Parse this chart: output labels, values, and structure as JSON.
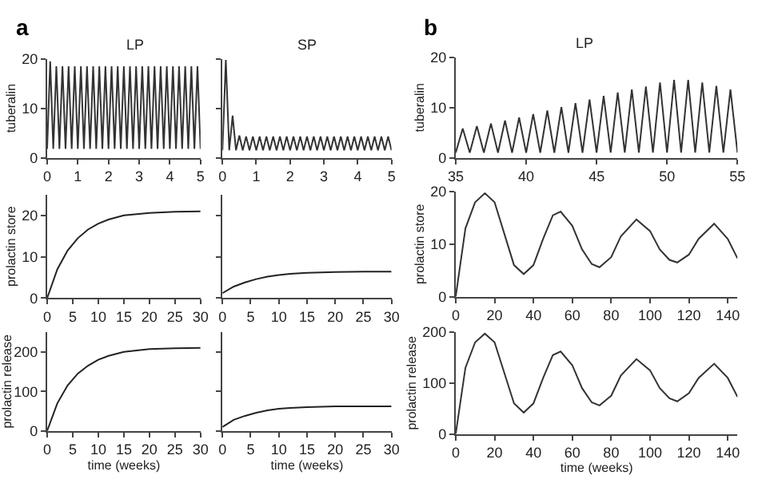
{
  "chart_data": [
    {
      "type": "line",
      "title": "LP",
      "ylabel": "tuberalin",
      "annotations": [
        "a"
      ],
      "x": [
        0,
        0.1,
        0.2,
        0.3,
        0.4,
        0.5,
        0.6,
        0.7,
        0.8,
        0.9,
        1.0,
        1.1,
        1.2,
        1.3,
        1.4,
        1.5,
        1.6,
        1.7,
        1.8,
        1.9,
        2.0,
        2.1,
        2.2,
        2.3,
        2.4,
        2.5,
        2.6,
        2.7,
        2.8,
        2.9,
        3.0,
        3.1,
        3.2,
        3.3,
        3.4,
        3.5,
        3.6,
        3.7,
        3.8,
        3.9,
        4.0,
        4.1,
        4.2,
        4.3,
        4.4,
        4.5,
        4.6,
        4.7,
        4.8,
        4.9,
        5.0
      ],
      "xlim": [
        0,
        5
      ],
      "xticks": [
        0,
        1,
        2,
        3,
        4,
        5
      ],
      "ylim": [
        0,
        20
      ],
      "yticks": [
        0,
        10,
        20
      ],
      "series": [
        {
          "color": "#333333",
          "values": [
            1.8,
            19.5,
            1.8,
            18.5,
            1.8,
            18.5,
            1.8,
            18.5,
            1.8,
            18.5,
            1.8,
            18.5,
            1.8,
            18.5,
            1.8,
            18.5,
            1.8,
            18.5,
            1.8,
            18.5,
            1.8,
            18.5,
            1.8,
            18.5,
            1.8,
            18.5,
            1.8,
            18.5,
            1.8,
            18.5,
            1.8,
            18.5,
            1.8,
            18.5,
            1.8,
            18.5,
            1.8,
            18.5,
            1.8,
            18.5,
            1.8,
            18.5,
            1.8,
            18.5,
            1.8,
            18.5,
            1.8,
            18.5,
            1.8,
            18.5,
            1.8
          ]
        }
      ]
    },
    {
      "type": "line",
      "title": "SP",
      "tick_labels": "x",
      "x": [
        0,
        0.1,
        0.2,
        0.3,
        0.4,
        0.5,
        0.6,
        0.7,
        0.8,
        0.9,
        1.0,
        1.1,
        1.2,
        1.3,
        1.4,
        1.5,
        1.6,
        1.7,
        1.8,
        1.9,
        2.0,
        2.1,
        2.2,
        2.3,
        2.4,
        2.5,
        2.6,
        2.7,
        2.8,
        2.9,
        3.0,
        3.1,
        3.2,
        3.3,
        3.4,
        3.5,
        3.6,
        3.7,
        3.8,
        3.9,
        4.0,
        4.1,
        4.2,
        4.3,
        4.4,
        4.5,
        4.6,
        4.7,
        4.8,
        4.9,
        5.0
      ],
      "xlim": [
        0,
        5
      ],
      "xticks": [
        0,
        1,
        2,
        3,
        4,
        5
      ],
      "ylim": [
        0,
        20
      ],
      "yticks": [
        0,
        10,
        20
      ],
      "series": [
        {
          "color": "#333333",
          "values": [
            1.5,
            19.8,
            1.5,
            8.5,
            1.5,
            4.5,
            1.5,
            4.3,
            1.5,
            4.3,
            1.5,
            4.3,
            1.5,
            4.3,
            1.5,
            4.3,
            1.5,
            4.3,
            1.5,
            4.3,
            1.5,
            4.3,
            1.5,
            4.3,
            1.5,
            4.3,
            1.5,
            4.3,
            1.5,
            4.3,
            1.5,
            4.3,
            1.5,
            4.3,
            1.5,
            4.3,
            1.5,
            4.3,
            1.5,
            4.3,
            1.5,
            4.3,
            1.5,
            4.3,
            1.5,
            4.3,
            1.5,
            4.3,
            1.5,
            4.3,
            1.5
          ]
        }
      ]
    },
    {
      "type": "line",
      "ylabel": "prolactin store",
      "x": [
        0,
        2,
        4,
        6,
        8,
        10,
        12,
        15,
        20,
        25,
        30
      ],
      "xlim": [
        0,
        30
      ],
      "xticks": [
        0,
        5,
        10,
        15,
        20,
        25,
        30
      ],
      "ylim": [
        0,
        25
      ],
      "yticks": [
        0,
        10,
        20
      ],
      "series": [
        {
          "color": "#222222",
          "values": [
            0,
            7,
            11.5,
            14.5,
            16.6,
            18,
            19,
            20,
            20.6,
            20.9,
            21
          ]
        }
      ]
    },
    {
      "type": "line",
      "tick_labels": "x",
      "x": [
        0,
        2,
        4,
        6,
        8,
        10,
        12,
        15,
        20,
        25,
        30
      ],
      "xlim": [
        0,
        30
      ],
      "xticks": [
        0,
        5,
        10,
        15,
        20,
        25,
        30
      ],
      "ylim": [
        0,
        25
      ],
      "yticks": [
        0,
        10,
        20
      ],
      "series": [
        {
          "color": "#222222",
          "values": [
            1.2,
            2.8,
            3.8,
            4.6,
            5.2,
            5.6,
            5.9,
            6.1,
            6.3,
            6.4,
            6.4
          ]
        }
      ]
    },
    {
      "type": "line",
      "ylabel": "prolactin release",
      "xlabel": "time (weeks)",
      "x": [
        0,
        2,
        4,
        6,
        8,
        10,
        12,
        15,
        20,
        25,
        30
      ],
      "xlim": [
        0,
        30
      ],
      "xticks": [
        0,
        5,
        10,
        15,
        20,
        25,
        30
      ],
      "ylim": [
        0,
        250
      ],
      "yticks": [
        0,
        100,
        200
      ],
      "series": [
        {
          "color": "#222222",
          "values": [
            0,
            70,
            115,
            145,
            165,
            180,
            190,
            200,
            207,
            209,
            210
          ]
        }
      ]
    },
    {
      "type": "line",
      "tick_labels": "x",
      "xlabel": "time (weeks)",
      "x": [
        0,
        2,
        4,
        6,
        8,
        10,
        12,
        15,
        20,
        25,
        30
      ],
      "xlim": [
        0,
        30
      ],
      "xticks": [
        0,
        5,
        10,
        15,
        20,
        25,
        30
      ],
      "ylim": [
        0,
        250
      ],
      "yticks": [
        0,
        100,
        200
      ],
      "series": [
        {
          "color": "#222222",
          "values": [
            10,
            28,
            38,
            46,
            52,
            56,
            58,
            60,
            62,
            62,
            62
          ]
        }
      ]
    },
    {
      "type": "line",
      "title": "LP",
      "ylabel": "tuberalin",
      "annotations": [
        "b"
      ],
      "x": [
        35,
        35.5,
        36,
        36.5,
        37,
        37.5,
        38,
        38.5,
        39,
        39.5,
        40,
        40.5,
        41,
        41.5,
        42,
        42.5,
        43,
        43.5,
        44,
        44.5,
        45,
        45.5,
        46,
        46.5,
        47,
        47.5,
        48,
        48.5,
        49,
        49.5,
        50,
        50.5,
        51,
        51.5,
        52,
        52.5,
        53,
        53.5,
        54,
        54.5,
        55
      ],
      "xlim": [
        35,
        55
      ],
      "xticks": [
        35,
        40,
        45,
        50,
        55
      ],
      "ylim": [
        0,
        20
      ],
      "yticks": [
        0,
        10,
        20
      ],
      "series": [
        {
          "color": "#333333",
          "values": [
            1,
            5.8,
            1,
            6.3,
            1,
            6.8,
            1,
            7.4,
            1,
            8.0,
            1,
            8.7,
            1,
            9.4,
            1,
            10.1,
            1,
            10.9,
            1,
            11.6,
            1,
            12.3,
            1,
            13.0,
            1,
            13.6,
            1,
            14.2,
            1,
            15.0,
            1,
            15.5,
            1,
            15.5,
            1,
            15.0,
            1,
            14.3,
            1,
            13.6,
            1
          ]
        }
      ]
    },
    {
      "type": "line",
      "ylabel": "prolactin store",
      "x": [
        0,
        5,
        10,
        15,
        20,
        25,
        30,
        35,
        40,
        45,
        50,
        54,
        60,
        65,
        70,
        74,
        80,
        85,
        93,
        100,
        105,
        110,
        114,
        120,
        125,
        133,
        140,
        145
      ],
      "xlim": [
        0,
        145
      ],
      "xticks": [
        0,
        20,
        40,
        60,
        80,
        100,
        120,
        140
      ],
      "ylim": [
        0,
        20
      ],
      "yticks": [
        0,
        10,
        20
      ],
      "series": [
        {
          "color": "#333333",
          "values": [
            0,
            13,
            18,
            19.7,
            18,
            12,
            6,
            4.3,
            6,
            11,
            15.5,
            16.2,
            13.5,
            9,
            6.2,
            5.6,
            7.5,
            11.5,
            14.7,
            12.5,
            9,
            7,
            6.5,
            8,
            11,
            13.9,
            11,
            7.3
          ]
        }
      ]
    },
    {
      "type": "line",
      "ylabel": "prolactin release",
      "xlabel": "time (weeks)",
      "x": [
        0,
        5,
        10,
        15,
        20,
        25,
        30,
        35,
        40,
        45,
        50,
        54,
        60,
        65,
        70,
        74,
        80,
        85,
        93,
        100,
        105,
        110,
        114,
        120,
        125,
        133,
        140,
        145
      ],
      "xlim": [
        0,
        145
      ],
      "xticks": [
        0,
        20,
        40,
        60,
        80,
        100,
        120,
        140
      ],
      "ylim": [
        0,
        200
      ],
      "yticks": [
        0,
        100,
        200
      ],
      "series": [
        {
          "color": "#333333",
          "values": [
            0,
            130,
            180,
            197,
            180,
            120,
            60,
            42,
            60,
            110,
            155,
            162,
            135,
            90,
            62,
            56,
            75,
            115,
            147,
            125,
            90,
            70,
            64,
            80,
            110,
            138,
            110,
            73
          ]
        }
      ]
    }
  ]
}
